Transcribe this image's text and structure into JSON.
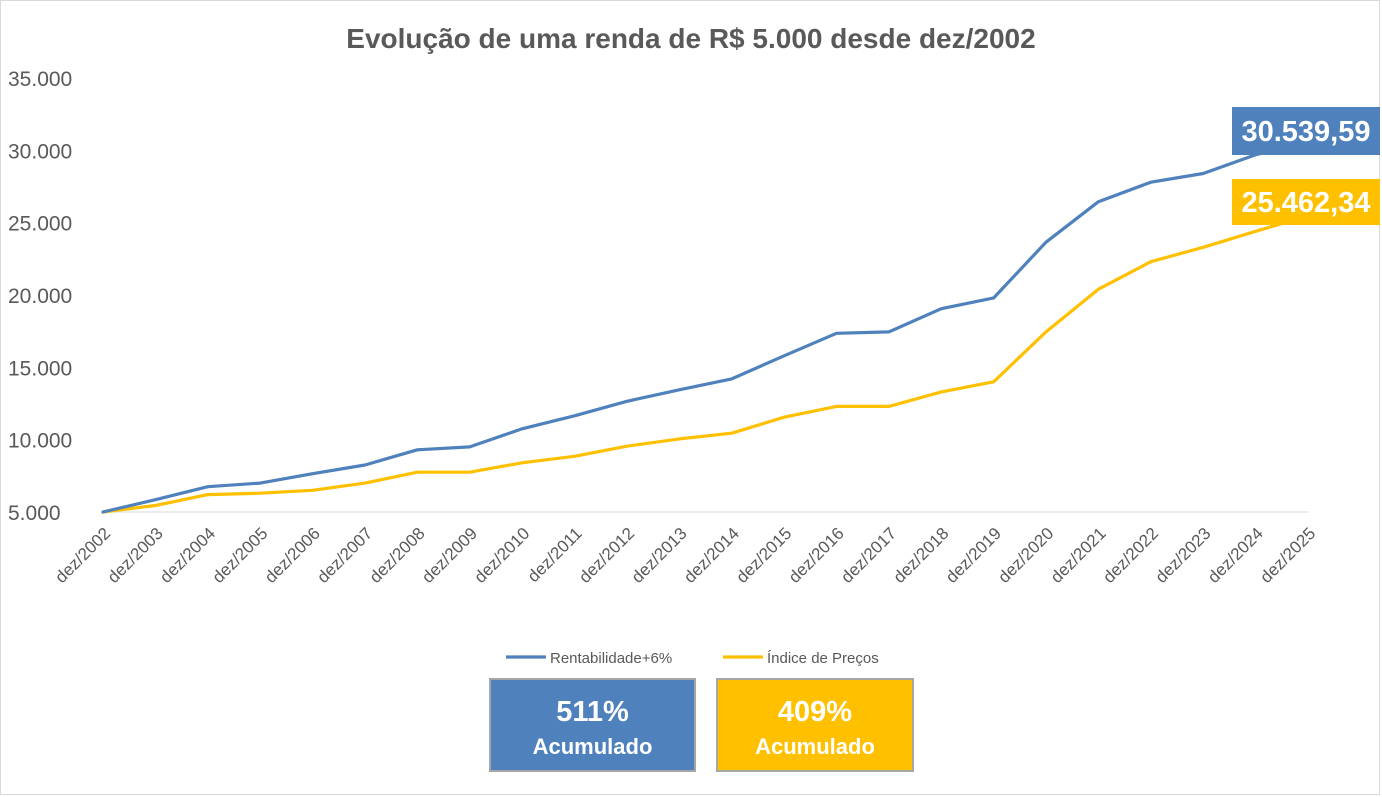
{
  "chart_data": {
    "type": "line",
    "title": "Evolução de uma renda de R$ 5.000 desde dez/2002",
    "ylim": [
      5000,
      35000
    ],
    "y_ticks": [
      5000,
      10000,
      15000,
      20000,
      25000,
      30000,
      35000
    ],
    "y_tick_labels": [
      "5.000",
      "10.000",
      "15.000",
      "20.000",
      "25.000",
      "30.000",
      "35.000"
    ],
    "categories": [
      "dez/2002",
      "dez/2003",
      "dez/2004",
      "dez/2005",
      "dez/2006",
      "dez/2007",
      "dez/2008",
      "dez/2009",
      "dez/2010",
      "dez/2011",
      "dez/2012",
      "dez/2013",
      "dez/2014",
      "dez/2015",
      "dez/2016",
      "dez/2017",
      "dez/2018",
      "dez/2019",
      "dez/2020",
      "dez/2021",
      "dez/2022",
      "dez/2023",
      "dez/2024",
      "dez/2025"
    ],
    "series": [
      {
        "name": "Rentabilidade+6%",
        "color": "#4f81bd",
        "values": [
          5000,
          5850,
          6750,
          7000,
          7650,
          8250,
          9300,
          9500,
          10750,
          11650,
          12650,
          13450,
          14200,
          15800,
          17350,
          17450,
          19050,
          19800,
          23650,
          26450,
          27800,
          28400,
          29700,
          30539.59
        ],
        "end_label": "30.539,59"
      },
      {
        "name": "Índice de Preços",
        "color": "#ffc000",
        "values": [
          5000,
          5450,
          6200,
          6300,
          6500,
          7000,
          7750,
          7750,
          8400,
          8850,
          9550,
          10050,
          10450,
          11550,
          12300,
          12300,
          13300,
          14000,
          17450,
          20400,
          22300,
          23300,
          24400,
          25462.34
        ],
        "end_label": "25.462,34"
      }
    ],
    "legend_position": "bottom",
    "grid": false
  },
  "summary": [
    {
      "percent": "511%",
      "label": "Acumulado",
      "color": "#4f81bd"
    },
    {
      "percent": "409%",
      "label": "Acumulado",
      "color": "#ffc000"
    }
  ]
}
